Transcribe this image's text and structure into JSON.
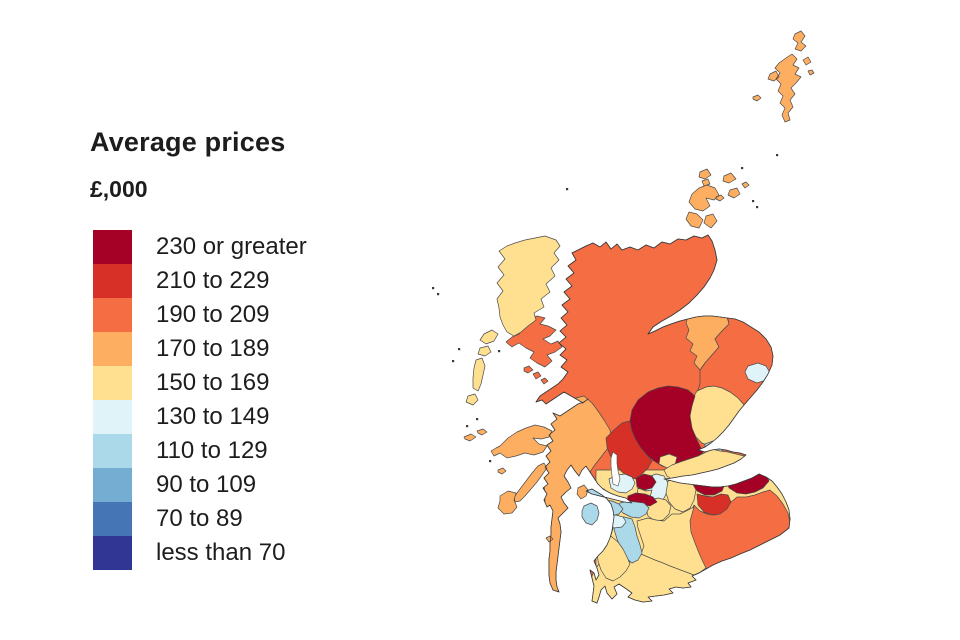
{
  "title": "Average prices",
  "subtitle": "£,000",
  "legend": {
    "items": [
      {
        "label": "230 or greater",
        "color": "#A50026"
      },
      {
        "label": "210 to 229",
        "color": "#D73027"
      },
      {
        "label": "190 to 209",
        "color": "#F46D43"
      },
      {
        "label": "170 to 189",
        "color": "#FDAE61"
      },
      {
        "label": "150 to 169",
        "color": "#FEE090"
      },
      {
        "label": "130 to 149",
        "color": "#E0F3F8"
      },
      {
        "label": "110 to 129",
        "color": "#ABD9E9"
      },
      {
        "label": "90 to 109",
        "color": "#74ADD1"
      },
      {
        "label": "70 to 89",
        "color": "#4575B4"
      },
      {
        "label": "less than 70",
        "color": "#313695"
      }
    ]
  },
  "map": {
    "border_color": "#4a4a4a",
    "coast_color": "#3a3a3a",
    "water_color": "#ffffff",
    "regions": [
      {
        "id": "highland",
        "name": "Highland",
        "band": "190 to 209",
        "color": "#F46D43"
      },
      {
        "id": "lowlands-base",
        "name": "Southern lowlands",
        "band": "150 to 169",
        "color": "#FEE090"
      },
      {
        "id": "argyll-bute",
        "name": "Argyll and Bute",
        "band": "170 to 189",
        "color": "#FDAE61"
      },
      {
        "id": "moray",
        "name": "Moray",
        "band": "170 to 189",
        "color": "#FDAE61"
      },
      {
        "id": "aberdeenshire",
        "name": "Aberdeenshire",
        "band": "190 to 209",
        "color": "#F46D43"
      },
      {
        "id": "aberdeen-city",
        "name": "Aberdeen City",
        "band": "130 to 149",
        "color": "#E0F3F8"
      },
      {
        "id": "angus",
        "name": "Angus",
        "band": "150 to 169",
        "color": "#FEE090"
      },
      {
        "id": "dundee-city",
        "name": "Dundee City",
        "band": "110 to 129",
        "color": "#ABD9E9"
      },
      {
        "id": "perth-kinross",
        "name": "Perth and Kinross",
        "band": "230 or greater",
        "color": "#A50026"
      },
      {
        "id": "stirling",
        "name": "Stirling",
        "band": "210 to 229",
        "color": "#D73027"
      },
      {
        "id": "clackmannanshire",
        "name": "Clackmannanshire",
        "band": "150 to 169",
        "color": "#FEE090"
      },
      {
        "id": "fife",
        "name": "Fife",
        "band": "150 to 169",
        "color": "#FEE090"
      },
      {
        "id": "falkirk",
        "name": "Falkirk",
        "band": "130 to 149",
        "color": "#E0F3F8"
      },
      {
        "id": "west-lothian",
        "name": "West Lothian",
        "band": "150 to 169",
        "color": "#FEE090"
      },
      {
        "id": "scottish-borders",
        "name": "Scottish Borders",
        "band": "190 to 209",
        "color": "#F46D43"
      },
      {
        "id": "edinburgh",
        "name": "City of Edinburgh",
        "band": "230 or greater",
        "color": "#A50026"
      },
      {
        "id": "east-lothian",
        "name": "East Lothian",
        "band": "230 or greater",
        "color": "#A50026"
      },
      {
        "id": "midlothian",
        "name": "Midlothian",
        "band": "210 to 229",
        "color": "#D73027"
      },
      {
        "id": "north-lanarkshire",
        "name": "North Lanarkshire",
        "band": "150 to 169",
        "color": "#FEE090"
      },
      {
        "id": "south-lanarkshire",
        "name": "South Lanarkshire",
        "band": "150 to 169",
        "color": "#FEE090"
      },
      {
        "id": "dumfries-galloway",
        "name": "Dumfries and Galloway",
        "band": "150 to 169",
        "color": "#FEE090"
      },
      {
        "id": "east-ayrshire",
        "name": "East Ayrshire",
        "band": "110 to 129",
        "color": "#ABD9E9"
      },
      {
        "id": "south-ayrshire",
        "name": "South Ayrshire",
        "band": "150 to 169",
        "color": "#FEE090"
      },
      {
        "id": "north-ayrshire",
        "name": "North Ayrshire",
        "band": "110 to 129",
        "color": "#ABD9E9"
      },
      {
        "id": "west-dunbartonshire",
        "name": "West Dunbartonshire",
        "band": "130 to 149",
        "color": "#E0F3F8"
      },
      {
        "id": "east-dunbartonshire",
        "name": "East Dunbartonshire",
        "band": "230 or greater",
        "color": "#A50026"
      },
      {
        "id": "glasgow-city",
        "name": "Glasgow City",
        "band": "110 to 129",
        "color": "#ABD9E9"
      },
      {
        "id": "inverclyde",
        "name": "Inverclyde",
        "band": "110 to 129",
        "color": "#ABD9E9"
      },
      {
        "id": "renfrewshire",
        "name": "Renfrewshire",
        "band": "110 to 129",
        "color": "#ABD9E9"
      },
      {
        "id": "east-renfrewshire",
        "name": "East Renfrewshire",
        "band": "130 to 149",
        "color": "#E0F3F8"
      },
      {
        "id": "skye",
        "name": "Isle of Skye (Highland)",
        "band": "190 to 209",
        "color": "#F46D43"
      },
      {
        "id": "small-isles",
        "name": "Small Isles (Highland)",
        "band": "190 to 209",
        "color": "#F46D43"
      },
      {
        "id": "mull",
        "name": "Isle of Mull (Argyll)",
        "band": "170 to 189",
        "color": "#FDAE61"
      },
      {
        "id": "tiree-coll",
        "name": "Tiree and Coll (Argyll)",
        "band": "170 to 189",
        "color": "#FDAE61"
      },
      {
        "id": "jura",
        "name": "Jura (Argyll)",
        "band": "170 to 189",
        "color": "#FDAE61"
      },
      {
        "id": "islay",
        "name": "Islay (Argyll)",
        "band": "170 to 189",
        "color": "#FDAE61"
      },
      {
        "id": "colonsay-gigha",
        "name": "Colonsay and Gigha",
        "band": "170 to 189",
        "color": "#FDAE61"
      },
      {
        "id": "bute",
        "name": "Isle of Bute (Argyll)",
        "band": "170 to 189",
        "color": "#FDAE61"
      },
      {
        "id": "arran",
        "name": "Isle of Arran (N Ayrshire)",
        "band": "110 to 129",
        "color": "#ABD9E9"
      },
      {
        "id": "lewis-harris",
        "name": "Na h-Eileanan Siar",
        "band": "150 to 169",
        "color": "#FEE090"
      },
      {
        "id": "uists-barra",
        "name": "Uists and Barra",
        "band": "150 to 169",
        "color": "#FEE090"
      },
      {
        "id": "orkney",
        "name": "Orkney Islands",
        "band": "170 to 189",
        "color": "#FDAE61"
      },
      {
        "id": "shetland",
        "name": "Shetland Islands",
        "band": "170 to 189",
        "color": "#FDAE61"
      }
    ]
  }
}
